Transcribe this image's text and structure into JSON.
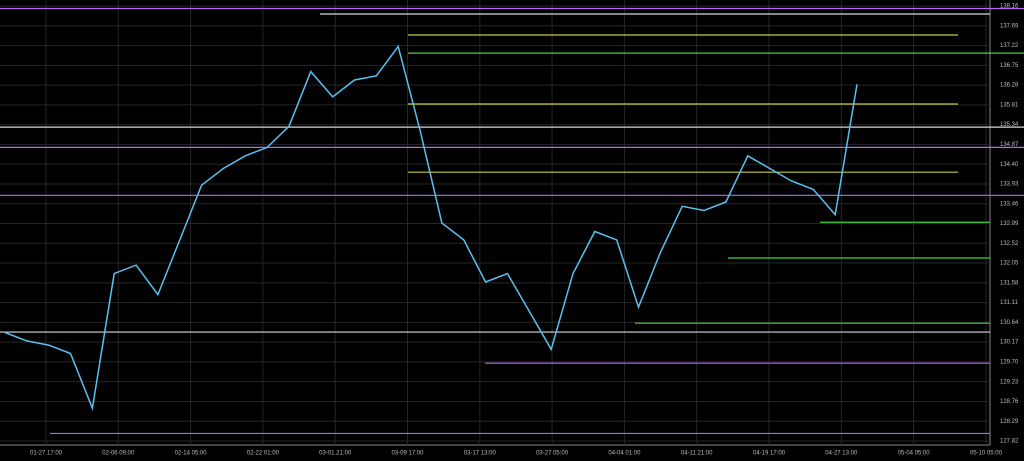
{
  "chart_data": {
    "type": "line",
    "time_labels": [
      "01-27 17:00",
      "02-06 09:00",
      "02-14 05:00",
      "02-22 01:00",
      "03-01 21:00",
      "03-09 17:00",
      "03-17 13:00",
      "03-27 05:00",
      "04-04 01:00",
      "04-11 21:00",
      "04-19 17:00",
      "04-27 13:00",
      "05-04 05:00",
      "05-10 05:00"
    ],
    "series": [
      {
        "color": "#5bc0f0",
        "values": [
          130.4,
          130.2,
          130.1,
          129.9,
          128.6,
          131.8,
          132.0,
          131.3,
          132.6,
          133.9,
          134.3,
          134.6,
          134.8,
          135.3,
          136.6,
          136.0,
          136.4,
          136.5,
          137.2,
          135.2,
          133.0,
          132.6,
          131.6,
          131.8,
          130.9,
          130.0,
          131.8,
          132.8,
          132.6,
          131.0,
          132.3,
          133.4,
          133.3,
          133.5,
          134.6,
          134.3,
          134.0,
          133.8,
          133.2,
          136.3
        ]
      }
    ],
    "levels": [
      {
        "color": "#b565f5",
        "value": 138.1
      },
      {
        "color": "#b565f5",
        "value": 134.8
      },
      {
        "color": "#b565f5",
        "value": 133.66
      },
      {
        "color": "#b565f5",
        "value": 129.67
      },
      {
        "color": "#b565f5",
        "value": 128.0
      },
      {
        "color": "#d8d8d8",
        "value": 135.28
      },
      {
        "color": "#d8d8d8",
        "value": 130.41
      },
      {
        "color": "#d8d8d8",
        "value": 137.97
      },
      {
        "color": "#c8c84a",
        "value": 137.47
      },
      {
        "color": "#c8c84a",
        "value": 135.83
      },
      {
        "color": "#c8c84a",
        "value": 134.21
      },
      {
        "color": "#3fd13f",
        "value": 137.04
      },
      {
        "color": "#3fd13f",
        "value": 133.02
      },
      {
        "color": "#3fd13f",
        "value": 132.17
      },
      {
        "color": "#3fd13f",
        "value": 130.62
      }
    ],
    "ylim": [
      127.82,
      138.16
    ],
    "yticks": [
      138.16,
      137.69,
      137.22,
      136.75,
      136.28,
      135.81,
      135.34,
      134.87,
      {
        "value": 134.4,
        "label": "134.40"
      },
      133.93,
      133.46,
      132.99,
      132.52,
      132.05,
      131.58,
      131.11,
      130.64,
      130.17,
      {
        "value": 129.7,
        "label": "129.70"
      },
      129.23,
      128.76,
      128.29,
      127.82
    ],
    "grid": true
  }
}
